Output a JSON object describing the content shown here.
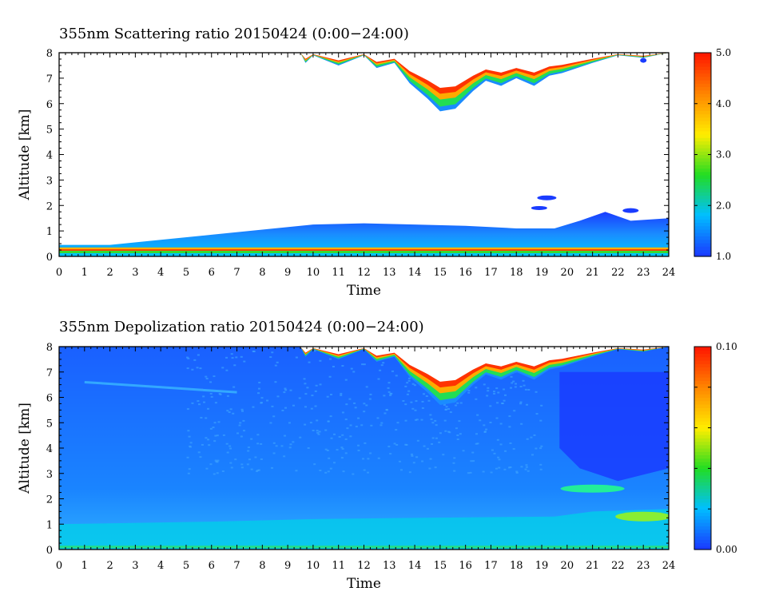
{
  "chart_data": [
    {
      "type": "heatmap",
      "title": "355nm Scattering ratio  20150424 (0:00−24:00)",
      "xlabel": "Time",
      "ylabel": "Altitude [km]",
      "xlim": [
        0,
        24
      ],
      "ylim": [
        0,
        8
      ],
      "x_ticks": [
        "0",
        "1",
        "2",
        "3",
        "4",
        "5",
        "6",
        "7",
        "8",
        "9",
        "10",
        "11",
        "12",
        "13",
        "14",
        "15",
        "16",
        "17",
        "18",
        "19",
        "20",
        "21",
        "22",
        "23",
        "24"
      ],
      "y_ticks": [
        "0",
        "1",
        "2",
        "3",
        "4",
        "5",
        "6",
        "7",
        "8"
      ],
      "colorbar": {
        "range": [
          1.0,
          5.0
        ],
        "labels": [
          "1.0",
          "2.0",
          "3.0",
          "4.0",
          "5.0"
        ],
        "colors": [
          "#1a3cff",
          "#00bfff",
          "#22dd22",
          "#ffee00",
          "#ff8800",
          "#ff1a00"
        ]
      },
      "features": {
        "boundary_layer_top_km": [
          {
            "time": 0,
            "top": 0.45
          },
          {
            "time": 2,
            "top": 0.45
          },
          {
            "time": 4,
            "top": 0.65
          },
          {
            "time": 6,
            "top": 0.85
          },
          {
            "time": 8,
            "top": 1.05
          },
          {
            "time": 10,
            "top": 1.25
          },
          {
            "time": 12,
            "top": 1.3
          },
          {
            "time": 14,
            "top": 1.25
          },
          {
            "time": 16,
            "top": 1.2
          },
          {
            "time": 18,
            "top": 1.1
          },
          {
            "time": 19.5,
            "top": 1.1
          },
          {
            "time": 20.5,
            "top": 1.4
          },
          {
            "time": 21.5,
            "top": 1.75
          },
          {
            "time": 22.5,
            "top": 1.4
          },
          {
            "time": 24,
            "top": 1.5
          }
        ],
        "upper_cloud": {
          "time_range": [
            9.5,
            23
          ],
          "base_min_km": 5.6,
          "top_km": 8
        }
      }
    },
    {
      "type": "heatmap",
      "title": "355nm Depolization ratio  20150424 (0:00−24:00)",
      "xlabel": "Time",
      "ylabel": "Altitude [km]",
      "xlim": [
        0,
        24
      ],
      "ylim": [
        0,
        8
      ],
      "x_ticks": [
        "0",
        "1",
        "2",
        "3",
        "4",
        "5",
        "6",
        "7",
        "8",
        "9",
        "10",
        "11",
        "12",
        "13",
        "14",
        "15",
        "16",
        "17",
        "18",
        "19",
        "20",
        "21",
        "22",
        "23",
        "24"
      ],
      "y_ticks": [
        "0",
        "1",
        "2",
        "3",
        "4",
        "5",
        "6",
        "7",
        "8"
      ],
      "colorbar": {
        "range": [
          0.0,
          0.1
        ],
        "labels": [
          "0.00",
          "0.10"
        ],
        "colors": [
          "#1a3cff",
          "#00bfff",
          "#22dd22",
          "#ffee00",
          "#ff8800",
          "#ff1a00"
        ]
      },
      "features": {
        "thin_layer_km": [
          {
            "time": 1,
            "alt": 6.6
          },
          {
            "time": 4,
            "alt": 6.4
          },
          {
            "time": 7,
            "alt": 6.2
          }
        ],
        "upper_cloud": {
          "time_range": [
            9.5,
            24
          ],
          "base_min_km": 5.6,
          "top_km": 8
        }
      }
    }
  ]
}
